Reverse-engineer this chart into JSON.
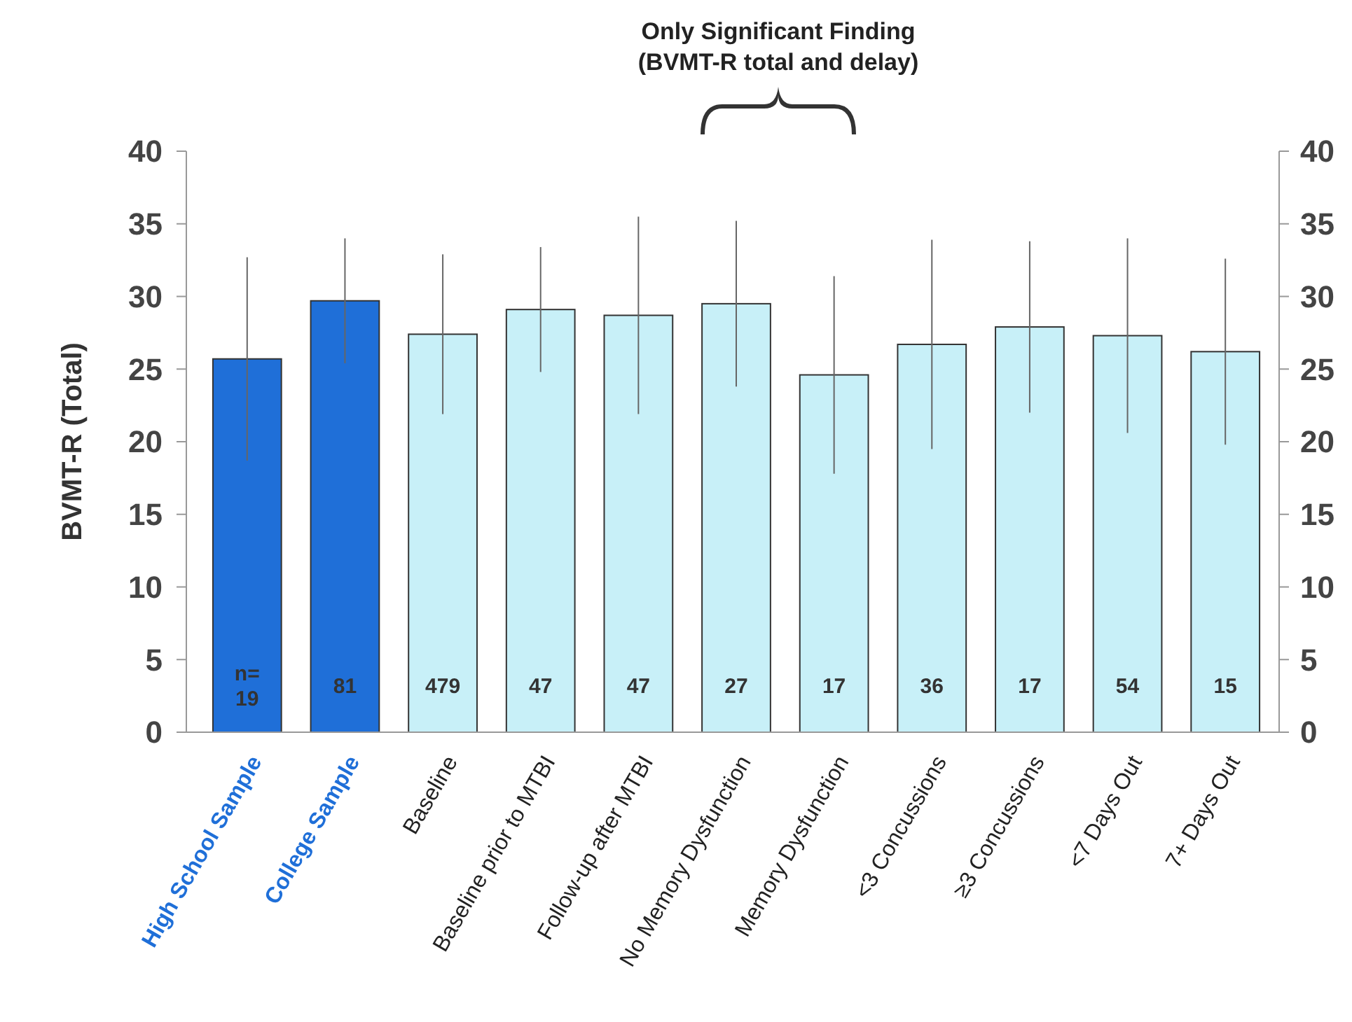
{
  "chart_data": {
    "type": "bar",
    "ylabel": "BVMT-R (Total)",
    "categories": [
      "High School Sample",
      "College Sample",
      "Baseline",
      "Baseline prior to MTBI",
      "Follow-up after MTBI",
      "No Memory Dysfunction",
      "Memory Dysfunction",
      "<3 Concussions",
      "≥3 Concussions",
      "<7 Days Out",
      "7+ Days Out"
    ],
    "values": [
      25.7,
      29.7,
      27.4,
      29.1,
      28.7,
      29.5,
      24.6,
      26.7,
      27.9,
      27.3,
      26.2
    ],
    "errors": [
      7,
      4.3,
      5.5,
      4.3,
      6.8,
      5.7,
      6.8,
      7.2,
      5.9,
      6.7,
      6.4
    ],
    "colors": [
      "#1f6fd8",
      "#1f6fd8",
      "#c8f0f8",
      "#c8f0f8",
      "#c8f0f8",
      "#c8f0f8",
      "#c8f0f8",
      "#c8f0f8",
      "#c8f0f8",
      "#c8f0f8",
      "#c8f0f8"
    ],
    "ylim": [
      0,
      40
    ],
    "yticks": [
      0,
      5,
      10,
      15,
      20,
      25,
      30,
      35,
      40
    ],
    "y2lim": [
      0,
      40
    ],
    "y2ticks": [
      0,
      5,
      10,
      15,
      20,
      25,
      30,
      35,
      40
    ],
    "grid": false,
    "annotations": [
      {
        "text": "Only Significant Finding\n(BVMT-R total and delay)"
      },
      "n=\n19",
      "81",
      "479",
      "47",
      "47",
      "27",
      "17",
      "36",
      "17",
      "54",
      "15"
    ]
  }
}
